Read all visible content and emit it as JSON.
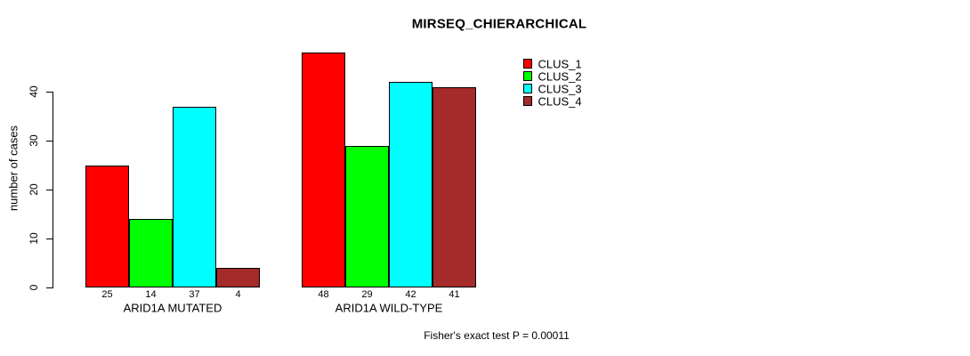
{
  "chart_data": {
    "type": "bar",
    "title": "MIRSEQ_CHIERARCHICAL",
    "xlabel": "",
    "ylabel": "number of cases",
    "categories": [
      "ARID1A MUTATED",
      "ARID1A WILD-TYPE"
    ],
    "series": [
      {
        "name": "CLUS_1",
        "color": "#FF0000",
        "values": [
          25,
          48
        ]
      },
      {
        "name": "CLUS_2",
        "color": "#00FF00",
        "values": [
          14,
          29
        ]
      },
      {
        "name": "CLUS_3",
        "color": "#00FFFF",
        "values": [
          37,
          42
        ]
      },
      {
        "name": "CLUS_4",
        "color": "#A52A2A",
        "values": [
          4,
          41
        ]
      }
    ],
    "bar_value_labels_shown": true,
    "yticks": [
      0,
      10,
      20,
      30,
      40
    ],
    "ylim": [
      0,
      48
    ],
    "grid": false,
    "legend_position": "top-right",
    "annotation": "Fisher's exact test P = 0.00011"
  }
}
